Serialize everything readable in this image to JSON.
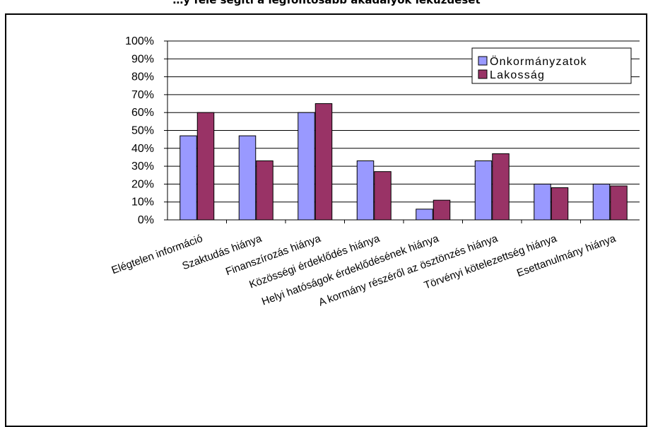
{
  "chart_data": {
    "type": "bar",
    "title": "…y felé segíti a legfontosabb akadályok leküzdését",
    "categories": [
      "Elégtelen információ",
      "Szaktudás hiánya",
      "Finanszírozás hiánya",
      "Közösségi érdeklődés hiánya",
      "Helyi hatóságok érdeklődésének hiánya",
      "A kormány részéről az ösztönzés hiánya",
      "Törvényi kötelezettség hiánya",
      "Esettanulmány hiánya"
    ],
    "series": [
      {
        "name": "Önkormányzatok",
        "color": "#9999ff",
        "values": [
          47,
          47,
          60,
          33,
          6,
          33,
          20,
          20
        ]
      },
      {
        "name": "Lakosság",
        "color": "#993366",
        "values": [
          60,
          33,
          65,
          27,
          11,
          37,
          18,
          19
        ]
      }
    ],
    "y_ticks": [
      "0%",
      "10%",
      "20%",
      "30%",
      "40%",
      "50%",
      "60%",
      "70%",
      "80%",
      "90%",
      "100%"
    ],
    "ylim": [
      0,
      100
    ],
    "xlabel": "",
    "ylabel": "",
    "grid": true,
    "legend": "top-right"
  }
}
